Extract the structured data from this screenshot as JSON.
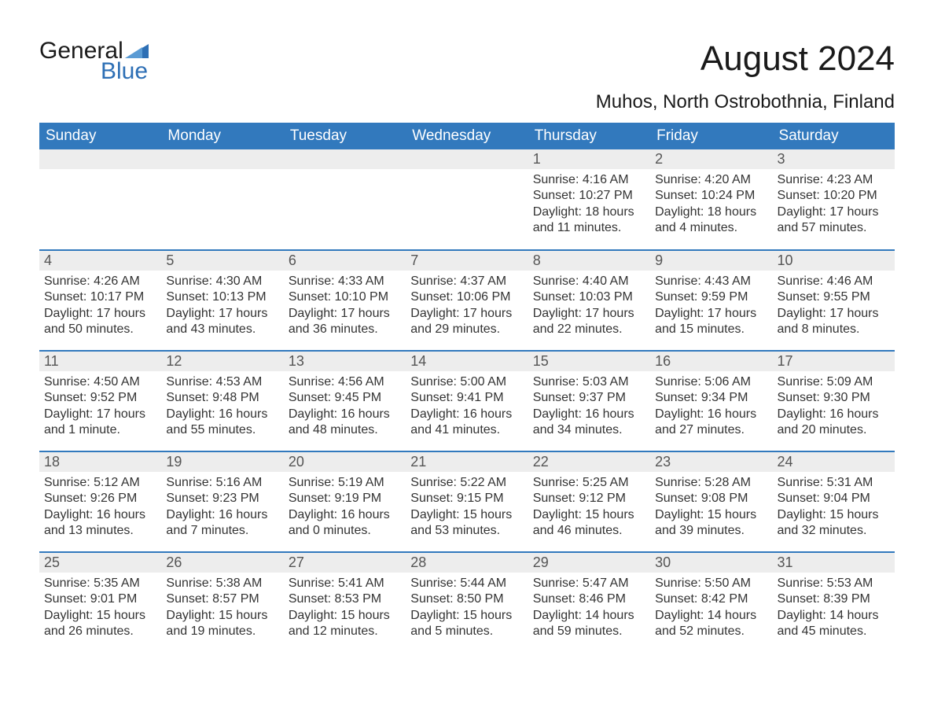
{
  "logo": {
    "word1": "General",
    "word2": "Blue"
  },
  "title": "August 2024",
  "location": "Muhos, North Ostrobothnia, Finland",
  "colors": {
    "header_bg": "#3279bd",
    "header_text": "#ffffff",
    "daynum_bg": "#ededed",
    "page_bg": "#ffffff",
    "text": "#333333",
    "logo_blue": "#2d6fb5"
  },
  "day_headers": [
    "Sunday",
    "Monday",
    "Tuesday",
    "Wednesday",
    "Thursday",
    "Friday",
    "Saturday"
  ],
  "weeks": [
    [
      null,
      null,
      null,
      null,
      {
        "n": "1",
        "sunrise": "4:16 AM",
        "sunset": "10:27 PM",
        "daylight": "18 hours and 11 minutes."
      },
      {
        "n": "2",
        "sunrise": "4:20 AM",
        "sunset": "10:24 PM",
        "daylight": "18 hours and 4 minutes."
      },
      {
        "n": "3",
        "sunrise": "4:23 AM",
        "sunset": "10:20 PM",
        "daylight": "17 hours and 57 minutes."
      }
    ],
    [
      {
        "n": "4",
        "sunrise": "4:26 AM",
        "sunset": "10:17 PM",
        "daylight": "17 hours and 50 minutes."
      },
      {
        "n": "5",
        "sunrise": "4:30 AM",
        "sunset": "10:13 PM",
        "daylight": "17 hours and 43 minutes."
      },
      {
        "n": "6",
        "sunrise": "4:33 AM",
        "sunset": "10:10 PM",
        "daylight": "17 hours and 36 minutes."
      },
      {
        "n": "7",
        "sunrise": "4:37 AM",
        "sunset": "10:06 PM",
        "daylight": "17 hours and 29 minutes."
      },
      {
        "n": "8",
        "sunrise": "4:40 AM",
        "sunset": "10:03 PM",
        "daylight": "17 hours and 22 minutes."
      },
      {
        "n": "9",
        "sunrise": "4:43 AM",
        "sunset": "9:59 PM",
        "daylight": "17 hours and 15 minutes."
      },
      {
        "n": "10",
        "sunrise": "4:46 AM",
        "sunset": "9:55 PM",
        "daylight": "17 hours and 8 minutes."
      }
    ],
    [
      {
        "n": "11",
        "sunrise": "4:50 AM",
        "sunset": "9:52 PM",
        "daylight": "17 hours and 1 minute."
      },
      {
        "n": "12",
        "sunrise": "4:53 AM",
        "sunset": "9:48 PM",
        "daylight": "16 hours and 55 minutes."
      },
      {
        "n": "13",
        "sunrise": "4:56 AM",
        "sunset": "9:45 PM",
        "daylight": "16 hours and 48 minutes."
      },
      {
        "n": "14",
        "sunrise": "5:00 AM",
        "sunset": "9:41 PM",
        "daylight": "16 hours and 41 minutes."
      },
      {
        "n": "15",
        "sunrise": "5:03 AM",
        "sunset": "9:37 PM",
        "daylight": "16 hours and 34 minutes."
      },
      {
        "n": "16",
        "sunrise": "5:06 AM",
        "sunset": "9:34 PM",
        "daylight": "16 hours and 27 minutes."
      },
      {
        "n": "17",
        "sunrise": "5:09 AM",
        "sunset": "9:30 PM",
        "daylight": "16 hours and 20 minutes."
      }
    ],
    [
      {
        "n": "18",
        "sunrise": "5:12 AM",
        "sunset": "9:26 PM",
        "daylight": "16 hours and 13 minutes."
      },
      {
        "n": "19",
        "sunrise": "5:16 AM",
        "sunset": "9:23 PM",
        "daylight": "16 hours and 7 minutes."
      },
      {
        "n": "20",
        "sunrise": "5:19 AM",
        "sunset": "9:19 PM",
        "daylight": "16 hours and 0 minutes."
      },
      {
        "n": "21",
        "sunrise": "5:22 AM",
        "sunset": "9:15 PM",
        "daylight": "15 hours and 53 minutes."
      },
      {
        "n": "22",
        "sunrise": "5:25 AM",
        "sunset": "9:12 PM",
        "daylight": "15 hours and 46 minutes."
      },
      {
        "n": "23",
        "sunrise": "5:28 AM",
        "sunset": "9:08 PM",
        "daylight": "15 hours and 39 minutes."
      },
      {
        "n": "24",
        "sunrise": "5:31 AM",
        "sunset": "9:04 PM",
        "daylight": "15 hours and 32 minutes."
      }
    ],
    [
      {
        "n": "25",
        "sunrise": "5:35 AM",
        "sunset": "9:01 PM",
        "daylight": "15 hours and 26 minutes."
      },
      {
        "n": "26",
        "sunrise": "5:38 AM",
        "sunset": "8:57 PM",
        "daylight": "15 hours and 19 minutes."
      },
      {
        "n": "27",
        "sunrise": "5:41 AM",
        "sunset": "8:53 PM",
        "daylight": "15 hours and 12 minutes."
      },
      {
        "n": "28",
        "sunrise": "5:44 AM",
        "sunset": "8:50 PM",
        "daylight": "15 hours and 5 minutes."
      },
      {
        "n": "29",
        "sunrise": "5:47 AM",
        "sunset": "8:46 PM",
        "daylight": "14 hours and 59 minutes."
      },
      {
        "n": "30",
        "sunrise": "5:50 AM",
        "sunset": "8:42 PM",
        "daylight": "14 hours and 52 minutes."
      },
      {
        "n": "31",
        "sunrise": "5:53 AM",
        "sunset": "8:39 PM",
        "daylight": "14 hours and 45 minutes."
      }
    ]
  ],
  "labels": {
    "sunrise": "Sunrise: ",
    "sunset": "Sunset: ",
    "daylight": "Daylight: "
  }
}
